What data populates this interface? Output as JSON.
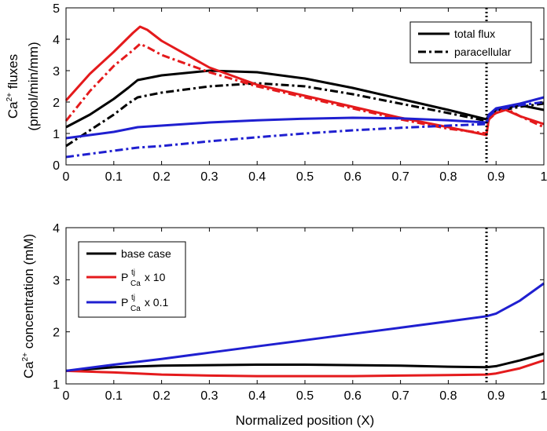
{
  "chart_data": [
    {
      "type": "line",
      "panel": "top",
      "ylabel_line1_base": "Ca",
      "ylabel_line1_sup": "2+",
      "ylabel_line1_rest": " fluxes",
      "ylabel_line2": "(pmol/min/mm)",
      "xlim": [
        0,
        1
      ],
      "ylim": [
        0,
        5
      ],
      "xticks": [
        "0",
        "0.1",
        "0.2",
        "0.3",
        "0.4",
        "0.5",
        "0.6",
        "0.7",
        "0.8",
        "0.9",
        "1"
      ],
      "yticks": [
        "0",
        "1",
        "2",
        "3",
        "4",
        "5"
      ],
      "vline_x": 0.88,
      "legend_position": "top-right",
      "legend": [
        {
          "label": "total flux",
          "style": "solid"
        },
        {
          "label": "paracellular",
          "style": "dashdot"
        }
      ],
      "series": [
        {
          "name": "base case total flux",
          "color": "#000000",
          "style": "solid",
          "x": [
            0,
            0.05,
            0.1,
            0.13,
            0.15,
            0.2,
            0.3,
            0.4,
            0.5,
            0.6,
            0.7,
            0.8,
            0.88,
            0.885,
            0.9,
            0.95,
            1
          ],
          "y": [
            1.2,
            1.6,
            2.1,
            2.45,
            2.7,
            2.85,
            3.0,
            2.95,
            2.75,
            2.45,
            2.1,
            1.75,
            1.45,
            1.6,
            1.75,
            1.9,
            1.75
          ]
        },
        {
          "name": "base case paracellular",
          "color": "#000000",
          "style": "dashdot",
          "x": [
            0,
            0.05,
            0.1,
            0.13,
            0.15,
            0.2,
            0.3,
            0.4,
            0.5,
            0.6,
            0.7,
            0.8,
            0.88,
            0.885,
            0.9,
            0.95,
            1
          ],
          "y": [
            0.6,
            1.1,
            1.6,
            1.95,
            2.15,
            2.3,
            2.5,
            2.6,
            2.5,
            2.25,
            1.95,
            1.65,
            1.4,
            1.55,
            1.7,
            1.85,
            1.95
          ]
        },
        {
          "name": "P x 10 total flux",
          "color": "#e41a1c",
          "style": "solid",
          "x": [
            0,
            0.05,
            0.1,
            0.14,
            0.155,
            0.17,
            0.2,
            0.3,
            0.4,
            0.5,
            0.6,
            0.7,
            0.8,
            0.88,
            0.885,
            0.9,
            0.92,
            0.95,
            1
          ],
          "y": [
            2.05,
            2.9,
            3.6,
            4.2,
            4.4,
            4.3,
            3.95,
            3.1,
            2.55,
            2.2,
            1.85,
            1.5,
            1.2,
            0.95,
            1.5,
            1.65,
            1.75,
            1.55,
            1.3
          ]
        },
        {
          "name": "P x 10 paracellular",
          "color": "#e41a1c",
          "style": "dashdot",
          "x": [
            0,
            0.05,
            0.1,
            0.14,
            0.155,
            0.17,
            0.2,
            0.3,
            0.4,
            0.5,
            0.6,
            0.7,
            0.8,
            0.88,
            0.885,
            0.9,
            0.92,
            0.95,
            1
          ],
          "y": [
            1.4,
            2.35,
            3.15,
            3.65,
            3.85,
            3.75,
            3.5,
            2.95,
            2.5,
            2.15,
            1.8,
            1.45,
            1.15,
            1.0,
            1.45,
            1.65,
            1.8,
            1.55,
            1.2
          ]
        },
        {
          "name": "P x 0.1 total flux",
          "color": "#1f1fd0",
          "style": "solid",
          "x": [
            0,
            0.05,
            0.1,
            0.15,
            0.2,
            0.3,
            0.4,
            0.5,
            0.6,
            0.7,
            0.8,
            0.88,
            0.885,
            0.9,
            0.95,
            1
          ],
          "y": [
            0.85,
            0.95,
            1.05,
            1.2,
            1.25,
            1.35,
            1.42,
            1.47,
            1.5,
            1.48,
            1.42,
            1.35,
            1.6,
            1.8,
            1.95,
            2.15
          ]
        },
        {
          "name": "P x 0.1 paracellular",
          "color": "#1f1fd0",
          "style": "dashdot",
          "x": [
            0,
            0.05,
            0.1,
            0.15,
            0.2,
            0.3,
            0.4,
            0.5,
            0.6,
            0.7,
            0.8,
            0.88,
            0.885,
            0.9,
            0.95,
            1
          ],
          "y": [
            0.25,
            0.35,
            0.45,
            0.55,
            0.6,
            0.75,
            0.88,
            1.0,
            1.1,
            1.18,
            1.25,
            1.3,
            1.55,
            1.75,
            1.9,
            2.0
          ]
        }
      ]
    },
    {
      "type": "line",
      "panel": "bottom",
      "ylabel_base": "Ca",
      "ylabel_sup": "2+",
      "ylabel_rest": " concentration (mM)",
      "xlabel": "Normalized position (X)",
      "xlim": [
        0,
        1
      ],
      "ylim": [
        1,
        4
      ],
      "xticks": [
        "0",
        "0.1",
        "0.2",
        "0.3",
        "0.4",
        "0.5",
        "0.6",
        "0.7",
        "0.8",
        "0.9",
        "1"
      ],
      "yticks": [
        "1",
        "2",
        "3",
        "4"
      ],
      "vline_x": 0.88,
      "legend_position": "top-left",
      "legend": [
        {
          "color": "#000000",
          "base": "base case",
          "sup": "",
          "sub": "",
          "suffix": ""
        },
        {
          "color": "#e41a1c",
          "base": "P",
          "sup": "tj",
          "sub": "Ca",
          "suffix": " x 10"
        },
        {
          "color": "#1f1fd0",
          "base": "P",
          "sup": "tj",
          "sub": "Ca",
          "suffix": " x 0.1"
        }
      ],
      "series": [
        {
          "name": "base case",
          "color": "#000000",
          "style": "solid",
          "x": [
            0,
            0.1,
            0.2,
            0.3,
            0.4,
            0.5,
            0.6,
            0.7,
            0.8,
            0.88,
            0.9,
            0.95,
            1
          ],
          "y": [
            1.25,
            1.32,
            1.35,
            1.36,
            1.37,
            1.37,
            1.36,
            1.35,
            1.33,
            1.32,
            1.34,
            1.45,
            1.58
          ]
        },
        {
          "name": "P x 10",
          "color": "#e41a1c",
          "style": "solid",
          "x": [
            0,
            0.1,
            0.2,
            0.3,
            0.4,
            0.5,
            0.6,
            0.7,
            0.8,
            0.88,
            0.9,
            0.95,
            1
          ],
          "y": [
            1.25,
            1.22,
            1.18,
            1.16,
            1.15,
            1.15,
            1.15,
            1.16,
            1.17,
            1.18,
            1.2,
            1.3,
            1.45
          ]
        },
        {
          "name": "P x 0.1",
          "color": "#1f1fd0",
          "style": "solid",
          "x": [
            0,
            0.1,
            0.2,
            0.3,
            0.4,
            0.5,
            0.6,
            0.7,
            0.8,
            0.88,
            0.9,
            0.95,
            1
          ],
          "y": [
            1.25,
            1.37,
            1.48,
            1.6,
            1.72,
            1.84,
            1.96,
            2.08,
            2.2,
            2.3,
            2.35,
            2.6,
            2.93
          ]
        }
      ]
    }
  ]
}
